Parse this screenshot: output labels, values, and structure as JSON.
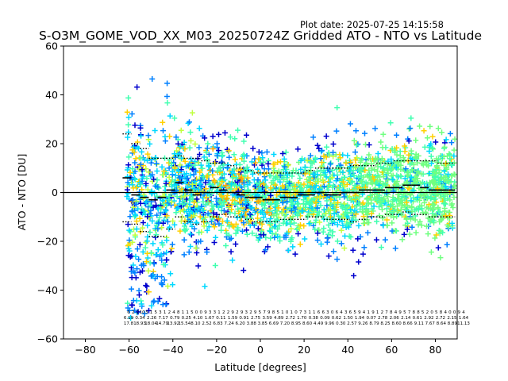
{
  "chart_data": {
    "type": "scatter",
    "title": "S-O3M_GOME_VOD_XX_M03_20250724Z Gridded ATO - NTO vs Latitude",
    "plot_date": "Plot date: 2025-07-25 14:15:58",
    "xlabel": "Latitude [degrees]",
    "ylabel": "ATO - NTO [DU]",
    "xlim": [
      -90,
      90
    ],
    "ylim": [
      -60,
      60
    ],
    "xticks": [
      -80,
      -60,
      -40,
      -20,
      0,
      20,
      40,
      60,
      80
    ],
    "yticks": [
      -60,
      -40,
      -20,
      0,
      20,
      40,
      60
    ],
    "grid": false,
    "zero_line": 0,
    "marker": "plus",
    "scatter_colors": [
      "#0000cd",
      "#0080ff",
      "#00d8ff",
      "#40ffb0",
      "#70ff80",
      "#c0ff40",
      "#ffd000",
      "#ffa500"
    ],
    "bins": {
      "lat": [
        -61,
        -57,
        -53,
        -49,
        -45,
        -41,
        -37,
        -33,
        -29,
        -25,
        -21,
        -17,
        -13,
        -9,
        -5,
        -1,
        3,
        7,
        11,
        15,
        19,
        23,
        27,
        31,
        35,
        39,
        43,
        47,
        51,
        55,
        59,
        63,
        67,
        71,
        75,
        79,
        83,
        87
      ],
      "mean": [
        6,
        -1,
        -2,
        -3,
        -2,
        1,
        4,
        1,
        -1,
        0,
        2,
        1,
        0,
        -1,
        -2,
        -2,
        -3,
        -3,
        -2,
        -2,
        -1,
        -1,
        0,
        -1,
        -1,
        0,
        0,
        1,
        1,
        1,
        2,
        2,
        3,
        3,
        2,
        1,
        1,
        1
      ],
      "std_upper": [
        24,
        20,
        18,
        14,
        14,
        14,
        15,
        14,
        14,
        13,
        12,
        12,
        11,
        10,
        9,
        8,
        8,
        8,
        8,
        8,
        8,
        9,
        10,
        10,
        10,
        10,
        11,
        11,
        11,
        12,
        12,
        13,
        13,
        13,
        13,
        13,
        12,
        12
      ],
      "std_lower": [
        -12,
        -13,
        -16,
        -18,
        -18,
        -15,
        -10,
        -12,
        -13,
        -12,
        -10,
        -9,
        -10,
        -10,
        -11,
        -12,
        -12,
        -12,
        -11,
        -11,
        -11,
        -10,
        -10,
        -11,
        -11,
        -11,
        -12,
        -11,
        -10,
        -10,
        -9,
        -9,
        -8,
        -9,
        -9,
        -10,
        -10,
        -10
      ]
    },
    "stat_rows": [
      [
        "6",
        "2",
        "2",
        "10",
        "3",
        "1",
        "5",
        "3",
        "1",
        "2",
        "4",
        "8",
        "1",
        "1",
        "5",
        "0",
        "0",
        "9",
        "3",
        "3",
        "1",
        "2",
        "2",
        "9",
        "2",
        "9",
        "3",
        "2",
        "9",
        "5",
        "7",
        "9",
        "8",
        "5",
        "1",
        "0",
        "1",
        "0",
        "7",
        "3",
        "1",
        "1",
        "6",
        "6",
        "3",
        "0",
        "6",
        "4",
        "3",
        "6",
        "5",
        "9",
        "4",
        "1",
        "9",
        "1",
        "2",
        "7",
        "8",
        "4",
        "9",
        "5",
        "7",
        "8",
        "8",
        "5",
        "2",
        "0",
        "5",
        "8",
        "4",
        "0",
        "0",
        "9",
        "4"
      ],
      [
        "6.19",
        "0.34",
        "2.26",
        "7.17",
        "0.79",
        "0.25",
        "4.10",
        "1.67",
        "0.11",
        "1.59",
        "0.91",
        "2.75",
        "3.59",
        "4.89",
        "2.72",
        "1.70",
        "0.38",
        "0.09",
        "0.62",
        "1.50",
        "1.94",
        "0.07",
        "2.78",
        "2.06",
        "2.14",
        "0.61",
        "2.92",
        "2.72",
        "2.15",
        "1.64"
      ],
      [
        "17.8",
        "18.93",
        "18.04",
        "14.79",
        "13.92",
        "15.54",
        "8.10",
        "2.52",
        "6.83",
        "7.24",
        "6.20",
        "3.88",
        "3.85",
        "6.69",
        "7.20",
        "8.95",
        "8.60",
        "4.49",
        "9.96",
        "0.30",
        "2.57",
        "9.26",
        "8.79",
        "8.25",
        "8.60",
        "8.66",
        "9.11",
        "7.67",
        "8.64",
        "8.89",
        "11.13"
      ]
    ]
  }
}
